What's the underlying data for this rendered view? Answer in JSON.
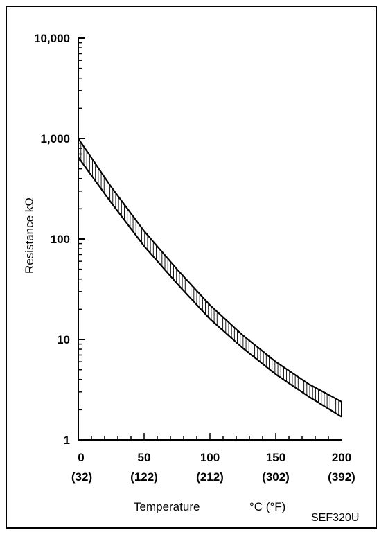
{
  "chart_data": {
    "type": "area",
    "title": "",
    "xlabel": "Temperature",
    "xunit": "°C (°F)",
    "ylabel": "Resistance kΩ",
    "yscale": "log",
    "xlim": [
      0,
      200
    ],
    "ylim": [
      1,
      10000
    ],
    "x_ticks": [
      {
        "value": 0,
        "label": "0",
        "sublabel": "(32)"
      },
      {
        "value": 50,
        "label": "50",
        "sublabel": "(122)"
      },
      {
        "value": 100,
        "label": "100",
        "sublabel": "(212)"
      },
      {
        "value": 150,
        "label": "150",
        "sublabel": "(302)"
      },
      {
        "value": 200,
        "label": "200",
        "sublabel": "(392)"
      }
    ],
    "y_ticks": [
      {
        "value": 1,
        "label": "1"
      },
      {
        "value": 10,
        "label": "10"
      },
      {
        "value": 100,
        "label": "100"
      },
      {
        "value": 1000,
        "label": "1,000"
      },
      {
        "value": 10000,
        "label": "10,000"
      }
    ],
    "grid": false,
    "legend": "none",
    "band": {
      "x": [
        0,
        25,
        50,
        75,
        100,
        125,
        150,
        175,
        200
      ],
      "upper": [
        1000,
        330,
        120,
        50,
        22,
        11,
        6,
        3.6,
        2.4
      ],
      "lower": [
        650,
        230,
        85,
        36,
        16,
        8.2,
        4.5,
        2.7,
        1.7
      ]
    },
    "annotations": [
      "SEF320U"
    ]
  }
}
